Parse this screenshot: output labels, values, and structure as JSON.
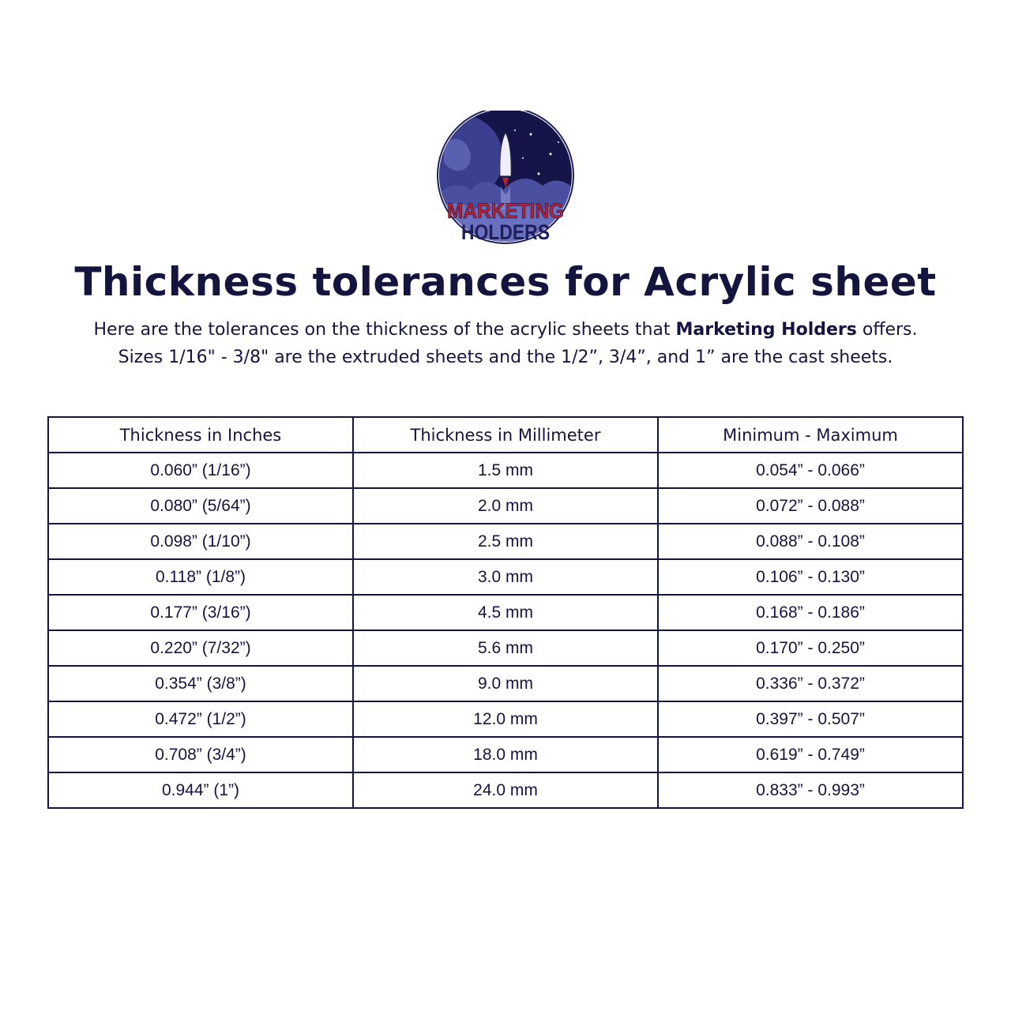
{
  "logo": {
    "line1": "MARKETING",
    "line2": "HOLDERS",
    "colors": {
      "navy": "#1e1e5a",
      "red": "#c0202a"
    }
  },
  "title": "Thickness tolerances for Acrylic sheet",
  "intro": {
    "line1_before": "Here are the tolerances on the thickness of the acrylic sheets that ",
    "line1_bold": "Marketing Holders",
    "line1_after": " offers.",
    "line2": "Sizes 1/16\" - 3/8\" are the extruded sheets and the 1/2”, 3/4”, and 1” are the cast sheets."
  },
  "table": {
    "headers": [
      "Thickness in Inches",
      "Thickness in Millimeter",
      "Minimum - Maximum"
    ],
    "rows": [
      [
        "0.060” (1/16”)",
        "1.5 mm",
        "0.054” - 0.066”"
      ],
      [
        "0.080” (5/64”)",
        "2.0 mm",
        "0.072” - 0.088”"
      ],
      [
        "0.098” (1/10”)",
        "2.5 mm",
        "0.088” - 0.108”"
      ],
      [
        "0.118” (1/8”)",
        "3.0 mm",
        "0.106” - 0.130”"
      ],
      [
        "0.177” (3/16”)",
        "4.5 mm",
        "0.168” - 0.186”"
      ],
      [
        "0.220” (7/32”)",
        "5.6 mm",
        "0.170” - 0.250”"
      ],
      [
        "0.354” (3/8”)",
        "9.0 mm",
        "0.336” - 0.372”"
      ],
      [
        "0.472” (1/2”)",
        "12.0 mm",
        "0.397” - 0.507”"
      ],
      [
        "0.708” (3/4”)",
        "18.0 mm",
        "0.619” - 0.749”"
      ],
      [
        "0.944” (1”)",
        "24.0 mm",
        "0.833” - 0.993”"
      ]
    ]
  }
}
